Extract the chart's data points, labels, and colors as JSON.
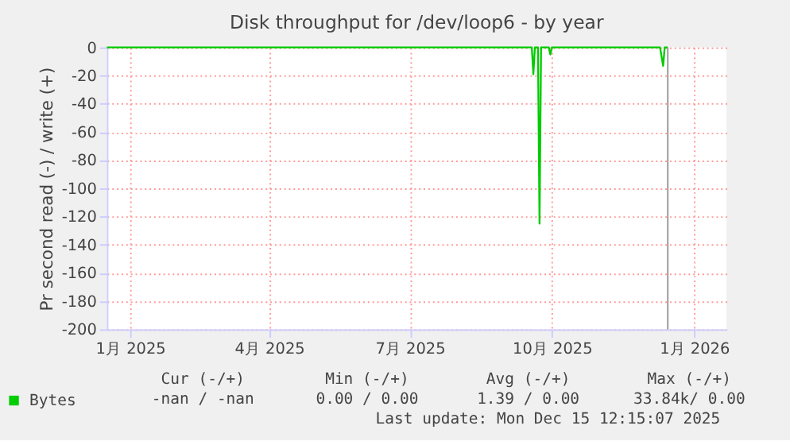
{
  "chart_data": {
    "type": "line",
    "title": "Disk throughput for /dev/loop6 - by year",
    "ylabel": "Pr second read (-) / write (+)",
    "x": [
      "2024-12-17",
      "2025-09-15",
      "2025-09-18",
      "2025-09-19",
      "2025-09-20",
      "2025-09-22",
      "2025-09-23",
      "2025-09-24",
      "2025-09-29",
      "2025-09-30",
      "2025-10-01",
      "2025-12-10",
      "2025-12-12",
      "2025-12-13",
      "2025-12-15"
    ],
    "series": [
      {
        "name": "Bytes",
        "color": "#00cc00",
        "values": [
          0,
          0,
          0,
          -19,
          0,
          0,
          -125,
          0,
          0,
          -5,
          0,
          0,
          -13,
          0,
          0
        ]
      }
    ],
    "xlim": [
      "2024-12-17",
      "2026-01-22"
    ],
    "xticks": [
      {
        "value": "2025-01-01",
        "label": "1月 2025"
      },
      {
        "value": "2025-04-01",
        "label": "4月 2025"
      },
      {
        "value": "2025-07-01",
        "label": "7月 2025"
      },
      {
        "value": "2025-10-01",
        "label": "10月 2025"
      },
      {
        "value": "2026-01-01",
        "label": "1月 2026"
      }
    ],
    "ylim": [
      -200,
      0
    ],
    "yticks": [
      -200,
      -180,
      -160,
      -140,
      -120,
      -100,
      -80,
      -60,
      -40,
      -20,
      0
    ],
    "ref_lines": [
      {
        "axis": "x",
        "value": "2025-12-15",
        "color": "#999999"
      }
    ],
    "grid": true,
    "legend": "bottom",
    "annotations": [
      "Cur (-/+)",
      "Min (-/+)",
      "Avg (-/+)",
      "Max (-/+)",
      "-nan /  -nan",
      "0.00 /  0.00",
      "1.39 /  0.00",
      "33.84k/  0.00",
      "Last update: Mon Dec 15 12:15:07 2025"
    ]
  }
}
